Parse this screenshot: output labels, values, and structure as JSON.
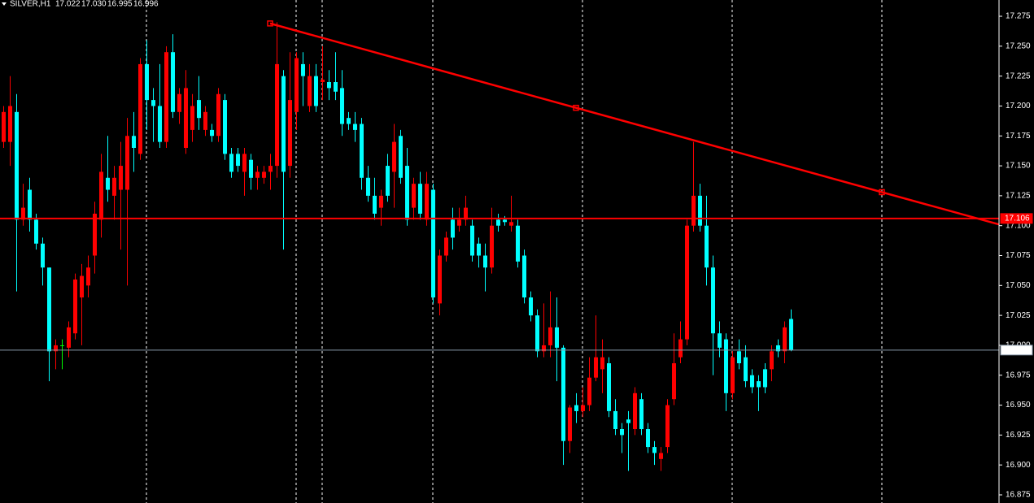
{
  "chart_data": {
    "type": "candlestick",
    "symbol": "SILVER,H1",
    "header_ohlc": [
      17.022,
      {
        "value": 17.03,
        "label": "17.030"
      },
      16.995,
      16.996
    ],
    "ylim": [
      16.8682,
      17.2886
    ],
    "yticks": [
      17.275,
      {
        "value": 17.25,
        "label": "17.250"
      },
      17.225,
      {
        "value": 17.2,
        "label": "17.200"
      },
      17.175,
      {
        "value": 17.15,
        "label": "17.150"
      },
      17.125,
      {
        "value": 17.1,
        "label": "17.100"
      },
      17.075,
      {
        "value": 17.05,
        "label": "17.050"
      },
      17.025,
      {
        "value": 17.0,
        "label": "17.000"
      },
      16.975,
      {
        "value": 16.95,
        "label": "16.950"
      },
      16.925,
      {
        "value": 16.9,
        "label": "16.900"
      },
      16.875
    ],
    "up_color": "#ff0000",
    "down_color": "#00ffff",
    "doji_color": "#00ff00",
    "open": [
      17.17,
      17.17,
      17.195,
      17.105,
      17.13,
      17.105,
      17.085,
      17.065,
      16.995,
      17.0,
      16.998,
      17.01,
      17.04,
      17.05,
      17.075,
      17.105,
      17.14,
      17.125,
      17.13,
      17.13,
      17.175,
      17.16,
      17.235,
      17.205,
      17.2,
      17.17,
      17.245,
      17.195,
      17.165,
      17.18,
      17.205,
      17.18,
      17.18,
      17.175,
      17.205,
      17.16,
      17.16,
      17.145,
      17.155,
      17.14,
      17.14,
      17.145,
      17.15,
      17.225,
      17.15,
      17.195,
      17.235,
      17.2,
      17.225,
      17.22,
      17.22,
      17.22,
      17.215,
      17.19,
      17.185,
      17.185,
      17.14,
      17.125,
      17.115,
      17.15,
      17.145,
      17.175,
      17.15,
      17.115,
      17.135,
      17.105,
      17.13,
      17.035,
      17.075,
      17.105,
      17.1,
      17.105,
      17.1,
      17.085,
      17.075,
      17.065,
      17.105,
      17.105,
      17.1,
      17.1,
      17.075,
      17.04,
      17.025,
      16.995,
      17.0,
      17.015,
      16.998,
      16.92,
      16.95,
      16.945,
      16.95,
      16.973,
      16.98,
      16.985,
      16.945,
      16.93,
      16.938,
      16.93,
      16.955,
      16.93,
      16.915,
      16.905,
      16.915,
      16.955,
      16.99,
      17.005,
      17.1,
      17.125,
      17.1,
      17.065,
      17.01,
      17.005,
      16.96,
      16.995,
      16.99,
      16.975,
      16.97,
      16.98,
      16.98,
      17.0,
      16.995,
      17.022
    ],
    "high": [
      17.2,
      17.225,
      17.21,
      17.135,
      17.14,
      17.11,
      17.09,
      17.065,
      17.005,
      17.005,
      17.02,
      17.06,
      17.068,
      17.075,
      17.12,
      17.16,
      17.175,
      17.15,
      17.17,
      17.19,
      17.195,
      17.24,
      17.255,
      17.215,
      17.235,
      17.25,
      17.26,
      17.215,
      17.23,
      17.21,
      17.225,
      17.2,
      17.185,
      17.215,
      17.21,
      17.165,
      17.165,
      17.165,
      17.16,
      17.15,
      17.15,
      17.16,
      17.27,
      17.23,
      17.245,
      17.245,
      17.245,
      17.235,
      17.235,
      17.25,
      17.23,
      17.245,
      17.23,
      17.195,
      17.195,
      17.19,
      17.15,
      17.14,
      17.13,
      17.16,
      17.185,
      17.18,
      17.165,
      17.14,
      17.145,
      17.145,
      17.135,
      17.08,
      17.095,
      17.115,
      17.115,
      17.125,
      17.105,
      17.09,
      17.085,
      17.115,
      17.11,
      17.108,
      17.125,
      17.105,
      17.08,
      17.045,
      17.03,
      17.035,
      17.045,
      17.04,
      17.0,
      16.95,
      16.96,
      16.965,
      16.99,
      17.025,
      17.005,
      16.99,
      16.955,
      16.935,
      16.945,
      16.965,
      16.96,
      16.935,
      16.92,
      16.915,
      16.955,
      17.01,
      17.02,
      17.105,
      17.17,
      17.135,
      17.125,
      17.075,
      17.02,
      17.01,
      16.995,
      17.005,
      17.0,
      16.98,
      16.975,
      16.985,
      17.0,
      17.005,
      17.02,
      17.03
    ],
    "low": [
      17.165,
      17.15,
      17.045,
      17.1,
      17.095,
      17.08,
      17.05,
      16.97,
      16.98,
      16.98,
      16.99,
      17.005,
      17.0,
      17.04,
      17.06,
      17.09,
      17.12,
      17.105,
      17.08,
      17.05,
      17.145,
      17.155,
      17.18,
      17.17,
      17.165,
      17.165,
      17.19,
      17.185,
      17.16,
      17.17,
      17.18,
      17.175,
      17.17,
      17.17,
      17.155,
      17.14,
      17.145,
      17.125,
      17.13,
      17.13,
      17.135,
      17.13,
      17.14,
      17.08,
      17.14,
      17.18,
      17.2,
      17.195,
      17.195,
      17.205,
      17.205,
      17.205,
      17.175,
      17.18,
      17.17,
      17.13,
      17.12,
      17.105,
      17.1,
      17.12,
      17.115,
      17.135,
      17.1,
      17.105,
      17.105,
      17.1,
      17.035,
      17.025,
      17.07,
      17.08,
      17.095,
      17.1,
      17.07,
      17.065,
      17.045,
      17.06,
      17.095,
      17.1,
      17.095,
      17.065,
      17.035,
      17.02,
      16.99,
      16.99,
      16.99,
      16.97,
      16.9,
      16.91,
      16.935,
      16.94,
      16.945,
      16.97,
      16.96,
      16.94,
      16.925,
      16.91,
      16.895,
      16.925,
      16.925,
      16.91,
      16.9,
      16.895,
      16.91,
      16.95,
      16.985,
      17.0,
      17.095,
      17.095,
      17.05,
      16.975,
      16.99,
      16.945,
      16.955,
      16.98,
      16.965,
      16.96,
      16.945,
      16.96,
      16.97,
      16.99,
      16.985,
      16.995
    ],
    "close": [
      17.195,
      17.2,
      17.105,
      17.115,
      17.105,
      17.085,
      17.065,
      16.995,
      17.0,
      17.0,
      17.015,
      17.055,
      17.058,
      17.065,
      17.11,
      17.145,
      17.13,
      17.14,
      17.15,
      17.175,
      17.165,
      17.235,
      17.205,
      17.2,
      17.17,
      17.245,
      17.195,
      17.21,
      17.215,
      17.2,
      17.19,
      17.195,
      17.175,
      17.21,
      17.16,
      17.145,
      17.15,
      17.16,
      17.14,
      17.145,
      17.145,
      17.15,
      17.235,
      17.145,
      17.205,
      17.24,
      17.225,
      17.225,
      17.2,
      17.222,
      17.215,
      17.212,
      17.185,
      17.185,
      17.18,
      17.14,
      17.125,
      17.11,
      17.125,
      17.125,
      17.17,
      17.14,
      17.105,
      17.135,
      17.11,
      17.135,
      17.04,
      17.075,
      17.09,
      17.09,
      17.105,
      17.115,
      17.075,
      17.075,
      17.065,
      17.1,
      17.1,
      17.103,
      17.103,
      17.07,
      17.04,
      17.025,
      16.995,
      17.0,
      17.015,
      16.998,
      16.92,
      16.948,
      16.945,
      16.95,
      16.973,
      16.99,
      16.99,
      16.945,
      16.93,
      16.925,
      16.935,
      16.96,
      16.93,
      16.915,
      16.91,
      16.91,
      16.95,
      16.985,
      17.005,
      17.1,
      17.125,
      17.1,
      17.065,
      17.01,
      16.998,
      16.96,
      16.99,
      16.985,
      16.97,
      16.965,
      16.965,
      16.965,
      16.995,
      16.995,
      17.015,
      16.996
    ],
    "separators": [
      22,
      45,
      49,
      66,
      89,
      112,
      135
    ],
    "trendline": {
      "color": "#ff0000",
      "points": [
        [
          41,
          17.269
        ],
        [
          135,
          17.128
        ]
      ]
    },
    "levels": [
      {
        "value": 17.106,
        "color": "#ff0000",
        "label_text_color": "#ffffff"
      },
      {
        "value": 16.996,
        "color": "#8899aa",
        "label_text_color": "#000000"
      }
    ]
  }
}
